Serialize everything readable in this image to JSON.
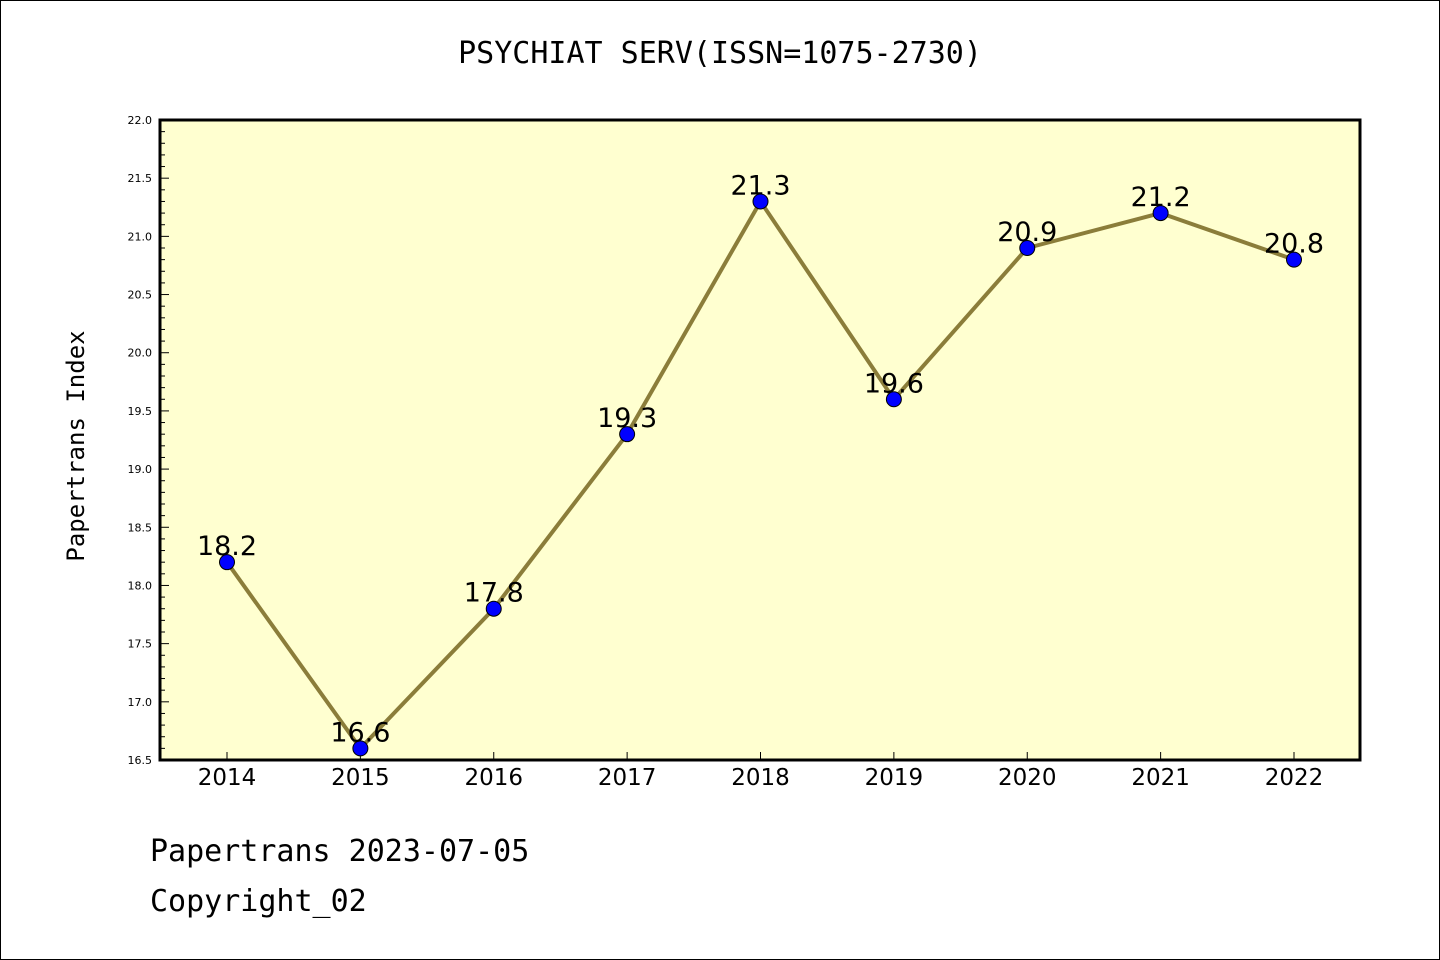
{
  "footer": {
    "date_line": "Papertrans 2023-07-05",
    "copyright_line": "Copyright_02"
  },
  "chart_data": {
    "type": "line",
    "title": "PSYCHIAT SERV(ISSN=1075-2730)",
    "xlabel": "",
    "ylabel": "Papertrans Index",
    "categories": [
      "2014",
      "2015",
      "2016",
      "2017",
      "2018",
      "2019",
      "2020",
      "2021",
      "2022"
    ],
    "series": [
      {
        "values": [
          18.2,
          16.6,
          17.8,
          19.3,
          21.3,
          19.6,
          20.9,
          21.2,
          20.8
        ]
      }
    ],
    "data_labels": [
      "18.2",
      "16.6",
      "17.8",
      "19.3",
      "21.3",
      "19.6",
      "20.9",
      "21.2",
      "20.8"
    ],
    "ylim": [
      16.5,
      22.0
    ],
    "yticks": [
      "16.5",
      "17.0",
      "17.5",
      "18.0",
      "18.5",
      "19.0",
      "19.5",
      "20.0",
      "20.5",
      "21.0",
      "21.5",
      "22.0"
    ],
    "grid": false,
    "legend": "none",
    "colors": {
      "line": "#8b7d3a",
      "marker": "#0000ff",
      "plot_background": "#ffffd0"
    }
  }
}
